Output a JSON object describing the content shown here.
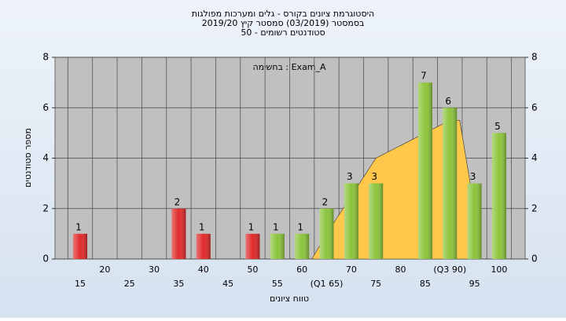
{
  "chart_data": {
    "type": "bar",
    "title": [
      "היסטוגרמת ציונים בקורס - גלים ומערכות מפולגות",
      "בסמסטר  (03/2019)  סמסטר קיץ 2019/20",
      "סטודנטים רשומים - 50"
    ],
    "annotation": "בחשימה : Exam_A",
    "x_label": "טווח ציונים",
    "y_label": "מספר סטודנטים",
    "categories": [
      "15",
      "20",
      "25",
      "30",
      "35",
      "40",
      "45",
      "50",
      "55",
      "60",
      "(Q1 65)",
      "70",
      "75",
      "80",
      "85",
      "(Q3 90)",
      "95",
      "100"
    ],
    "values": [
      1,
      0,
      0,
      0,
      2,
      1,
      0,
      1,
      1,
      1,
      2,
      3,
      3,
      0,
      7,
      6,
      3,
      5
    ],
    "colors": [
      "#e02a2a",
      "#e02a2a",
      "#e02a2a",
      "#e02a2a",
      "#e02a2a",
      "#e02a2a",
      "#e02a2a",
      "#e02a2a",
      "#8cc43c",
      "#8cc43c",
      "#8cc43c",
      "#8cc43c",
      "#8cc43c",
      "#8cc43c",
      "#8cc43c",
      "#8cc43c",
      "#8cc43c",
      "#8cc43c"
    ],
    "area": {
      "x": [
        62,
        65,
        70,
        75,
        80,
        85,
        90,
        92,
        95
      ],
      "values": [
        0,
        1,
        2.5,
        4,
        4.5,
        5,
        5.5,
        5.5,
        2
      ],
      "color": "#ffc84a"
    },
    "ylim": [
      0,
      8
    ],
    "yticks": [
      0,
      2,
      4,
      6,
      8
    ],
    "y2lim": [
      0,
      8
    ],
    "y2ticks": [
      0,
      2,
      4,
      6,
      8
    ],
    "grid": true
  }
}
